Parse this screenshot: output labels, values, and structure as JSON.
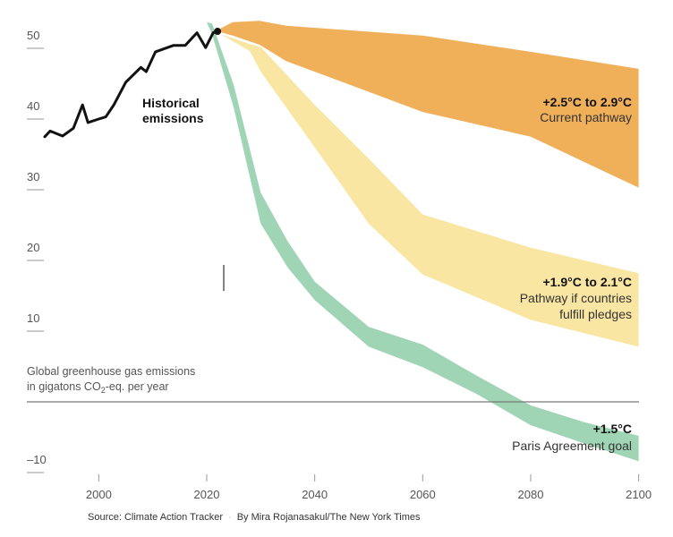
{
  "chart_data": {
    "type": "area",
    "title": "",
    "ylabel_line1": "Global greenhouse gas emissions",
    "ylabel_line2_pre": "in gigatons CO",
    "ylabel_line2_sub": "2",
    "ylabel_line2_post": "-eq. per year",
    "xlim": [
      1990,
      2100
    ],
    "ylim": [
      -10,
      50
    ],
    "x_ticks": [
      "2000",
      "2020",
      "2040",
      "2060",
      "2080",
      "2100"
    ],
    "x_tick_values": [
      2000,
      2020,
      2040,
      2060,
      2080,
      2100
    ],
    "y_ticks": [
      "50",
      "40",
      "30",
      "20",
      "10",
      "–10"
    ],
    "y_tick_values": [
      50,
      40,
      30,
      20,
      10,
      -10
    ],
    "historical": {
      "label_line1": "Historical",
      "label_line2": "emissions",
      "color": "#121212",
      "x": [
        1990,
        1991,
        1993.3,
        1995.3,
        1997,
        1998,
        2000,
        2001.3,
        2002.8,
        2005,
        2007.8,
        2008.8,
        2010.5,
        2013.8,
        2016,
        2018.2,
        2019.8,
        2021.2,
        2022
      ],
      "y": [
        37.5,
        38.3,
        37.6,
        38.7,
        42.0,
        39.5,
        40.0,
        40.3,
        42.0,
        45.2,
        47.3,
        46.7,
        49.5,
        50.4,
        50.4,
        52.2,
        50.1,
        52.2,
        52.4
      ]
    },
    "series": [
      {
        "name": "current",
        "title": "+2.5°C to 2.9°C",
        "subtitle": "Current pathway",
        "color": "#f0b05a",
        "x": [
          2022,
          2024.8,
          2029.8,
          2034.7,
          2060,
          2080,
          2100
        ],
        "low": [
          52.4,
          51.8,
          50.5,
          48.2,
          41.0,
          37.5,
          30.3
        ],
        "high": [
          52.6,
          53.7,
          53.9,
          53.2,
          51.8,
          49.5,
          47.1
        ]
      },
      {
        "name": "pledges",
        "title": "+1.9°C to 2.1°C",
        "subtitle_line1": "Pathway if countries",
        "subtitle_line2": "fulfill pledges",
        "color": "#f9e6a2",
        "x": [
          2022.6,
          2028,
          2030,
          2040,
          2050,
          2060,
          2080,
          2100
        ],
        "low": [
          52.0,
          49.6,
          46.7,
          36.0,
          25.2,
          18.0,
          11.6,
          7.8
        ],
        "high": [
          52.0,
          50.6,
          50.2,
          42.0,
          34.4,
          26.5,
          21.8,
          18.2
        ]
      },
      {
        "name": "paris",
        "title": "+1.5°C",
        "subtitle": "Paris Agreement goal",
        "color": "#9fd4b5",
        "x": [
          2020,
          2021,
          2025,
          2030,
          2035,
          2040,
          2050,
          2060,
          2070,
          2080,
          2090,
          2100
        ],
        "low": [
          53.7,
          52.0,
          41.6,
          25.2,
          19.0,
          14.4,
          7.8,
          4.9,
          1.1,
          -3.3,
          -5.9,
          -8.4
        ],
        "high": [
          53.7,
          53.5,
          44.8,
          29.6,
          22.7,
          17.0,
          10.6,
          8.1,
          3.7,
          -0.5,
          -2.9,
          -4.8
        ]
      }
    ],
    "source": "Source: Climate Action Tracker",
    "separator": "·",
    "credit": "By Mira Rojanasakul/The New York Times"
  }
}
